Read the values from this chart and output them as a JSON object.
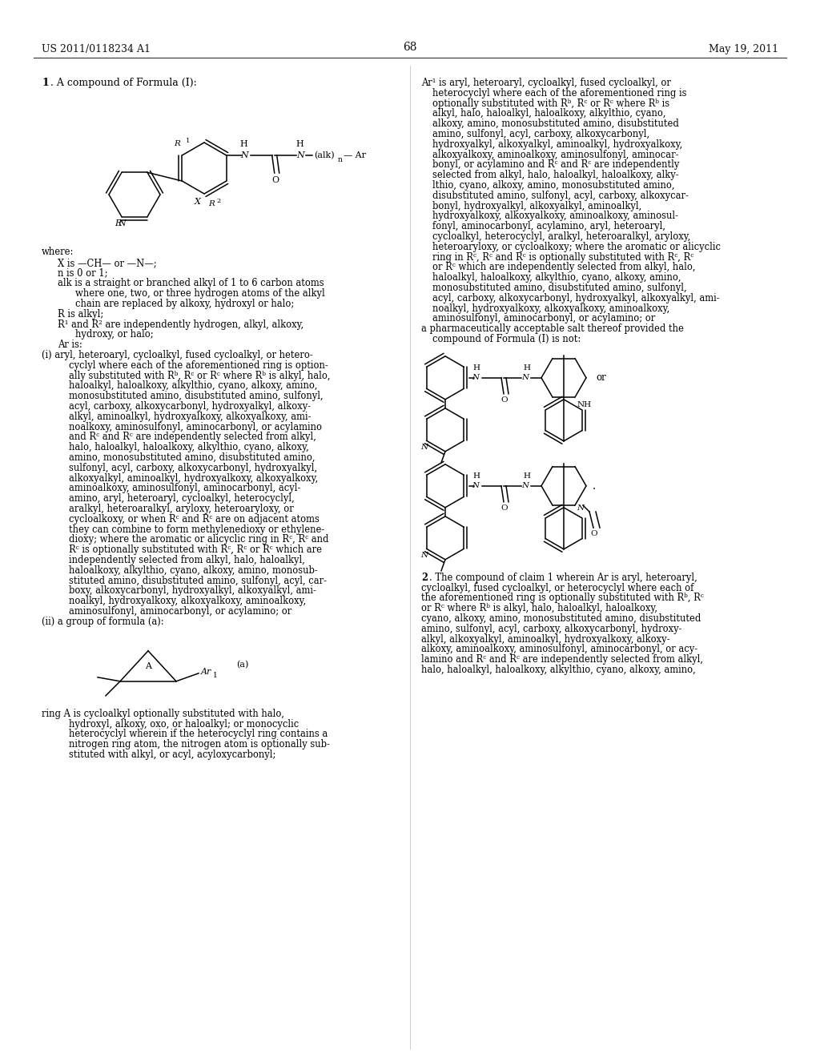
{
  "bg_color": "#ffffff",
  "header_left": "US 2011/0118234 A1",
  "header_right": "May 19, 2011",
  "page_number": "68"
}
